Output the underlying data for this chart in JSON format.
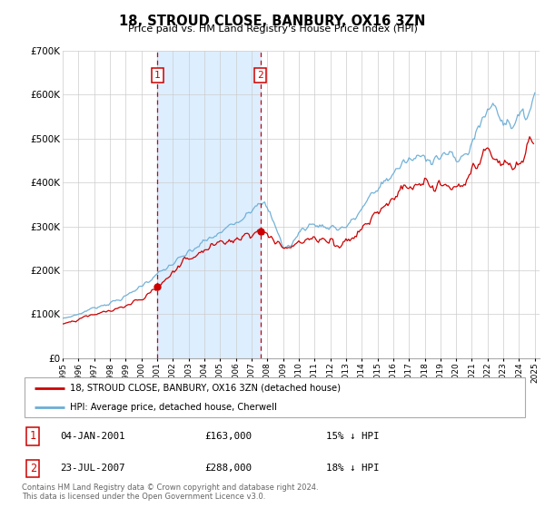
{
  "title": "18, STROUD CLOSE, BANBURY, OX16 3ZN",
  "subtitle": "Price paid vs. HM Land Registry's House Price Index (HPI)",
  "hpi_label": "HPI: Average price, detached house, Cherwell",
  "price_label": "18, STROUD CLOSE, BANBURY, OX16 3ZN (detached house)",
  "footer1": "Contains HM Land Registry data © Crown copyright and database right 2024.",
  "footer2": "This data is licensed under the Open Government Licence v3.0.",
  "ylim": [
    0,
    700000
  ],
  "yticks": [
    0,
    100000,
    200000,
    300000,
    400000,
    500000,
    600000,
    700000
  ],
  "ytick_labels": [
    "£0",
    "£100K",
    "£200K",
    "£300K",
    "£400K",
    "£500K",
    "£600K",
    "£700K"
  ],
  "xlim_start": 1995.0,
  "xlim_end": 2025.3,
  "xtick_years": [
    1995,
    1996,
    1997,
    1998,
    1999,
    2000,
    2001,
    2002,
    2003,
    2004,
    2005,
    2006,
    2007,
    2008,
    2009,
    2010,
    2011,
    2012,
    2013,
    2014,
    2015,
    2016,
    2017,
    2018,
    2019,
    2020,
    2021,
    2022,
    2023,
    2024,
    2025
  ],
  "hpi_color": "#6baed6",
  "price_color": "#cc0000",
  "shaded_start": 2001.02,
  "shaded_end": 2007.56,
  "shaded_color": "#ddeeff",
  "marker1_x": 2001.02,
  "marker1_y": 163000,
  "marker2_x": 2007.56,
  "marker2_y": 288000,
  "vline1_x": 2001.02,
  "vline2_x": 2007.56,
  "sale1_date": "04-JAN-2001",
  "sale1_price": "£163,000",
  "sale1_hpi": "15% ↓ HPI",
  "sale2_date": "23-JUL-2007",
  "sale2_price": "£288,000",
  "sale2_hpi": "18% ↓ HPI"
}
